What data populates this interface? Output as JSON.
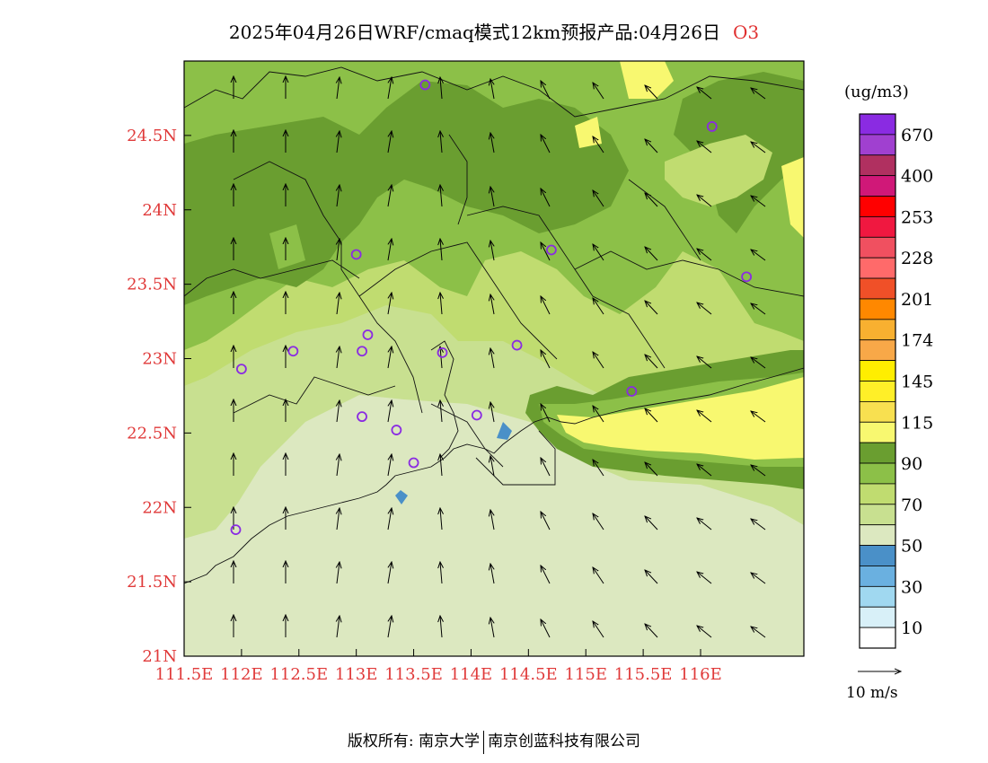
{
  "title": {
    "text": "2025年04月26日WRF/cmaq模式12km预报产品:04月26日",
    "species": "O3"
  },
  "units": "(ug/m3)",
  "x_ticks": [
    "111.5E",
    "112E",
    "112.5E",
    "113E",
    "113.5E",
    "114E",
    "114.5E",
    "115E",
    "115.5E",
    "116E"
  ],
  "y_ticks": [
    "21N",
    "21.5N",
    "22N",
    "22.5N",
    "23N",
    "23.5N",
    "24N",
    "24.5N"
  ],
  "legend": {
    "labels": [
      "670",
      "400",
      "253",
      "228",
      "201",
      "174",
      "145",
      "115",
      "90",
      "70",
      "50",
      "30",
      "10"
    ],
    "colors": [
      "#8a2be2",
      "#a040d0",
      "#b03060",
      "#d01878",
      "#ff0000",
      "#f01840",
      "#f05060",
      "#ff6a6a",
      "#f05028",
      "#ff8800",
      "#f8b030",
      "#f8a848",
      "#ffee00",
      "#ffef28",
      "#f8e050",
      "#f8f870",
      "#6a9e30",
      "#8cc048",
      "#c0dc70",
      "#c8e090",
      "#dce8c0",
      "#4a90c8",
      "#6ab0e0",
      "#a0d8f0",
      "#d8f0f8",
      "#ffffff"
    ]
  },
  "wind_reference": "10 m/s",
  "copyright": {
    "left": "版权所有: 南京大学",
    "right": "南京创蓝科技有限公司"
  },
  "stations": [
    {
      "lon": 113.6,
      "lat": 24.84
    },
    {
      "lon": 116.1,
      "lat": 24.56
    },
    {
      "lon": 113.0,
      "lat": 23.7
    },
    {
      "lon": 114.7,
      "lat": 23.73
    },
    {
      "lon": 116.4,
      "lat": 23.55
    },
    {
      "lon": 112.0,
      "lat": 22.93
    },
    {
      "lon": 112.45,
      "lat": 23.05
    },
    {
      "lon": 113.1,
      "lat": 23.16
    },
    {
      "lon": 113.05,
      "lat": 23.05
    },
    {
      "lon": 113.75,
      "lat": 23.04
    },
    {
      "lon": 114.4,
      "lat": 23.09
    },
    {
      "lon": 113.05,
      "lat": 22.61
    },
    {
      "lon": 113.35,
      "lat": 22.52
    },
    {
      "lon": 114.05,
      "lat": 22.62
    },
    {
      "lon": 115.4,
      "lat": 22.78
    },
    {
      "lon": 113.5,
      "lat": 22.3
    },
    {
      "lon": 111.95,
      "lat": 21.85
    }
  ]
}
